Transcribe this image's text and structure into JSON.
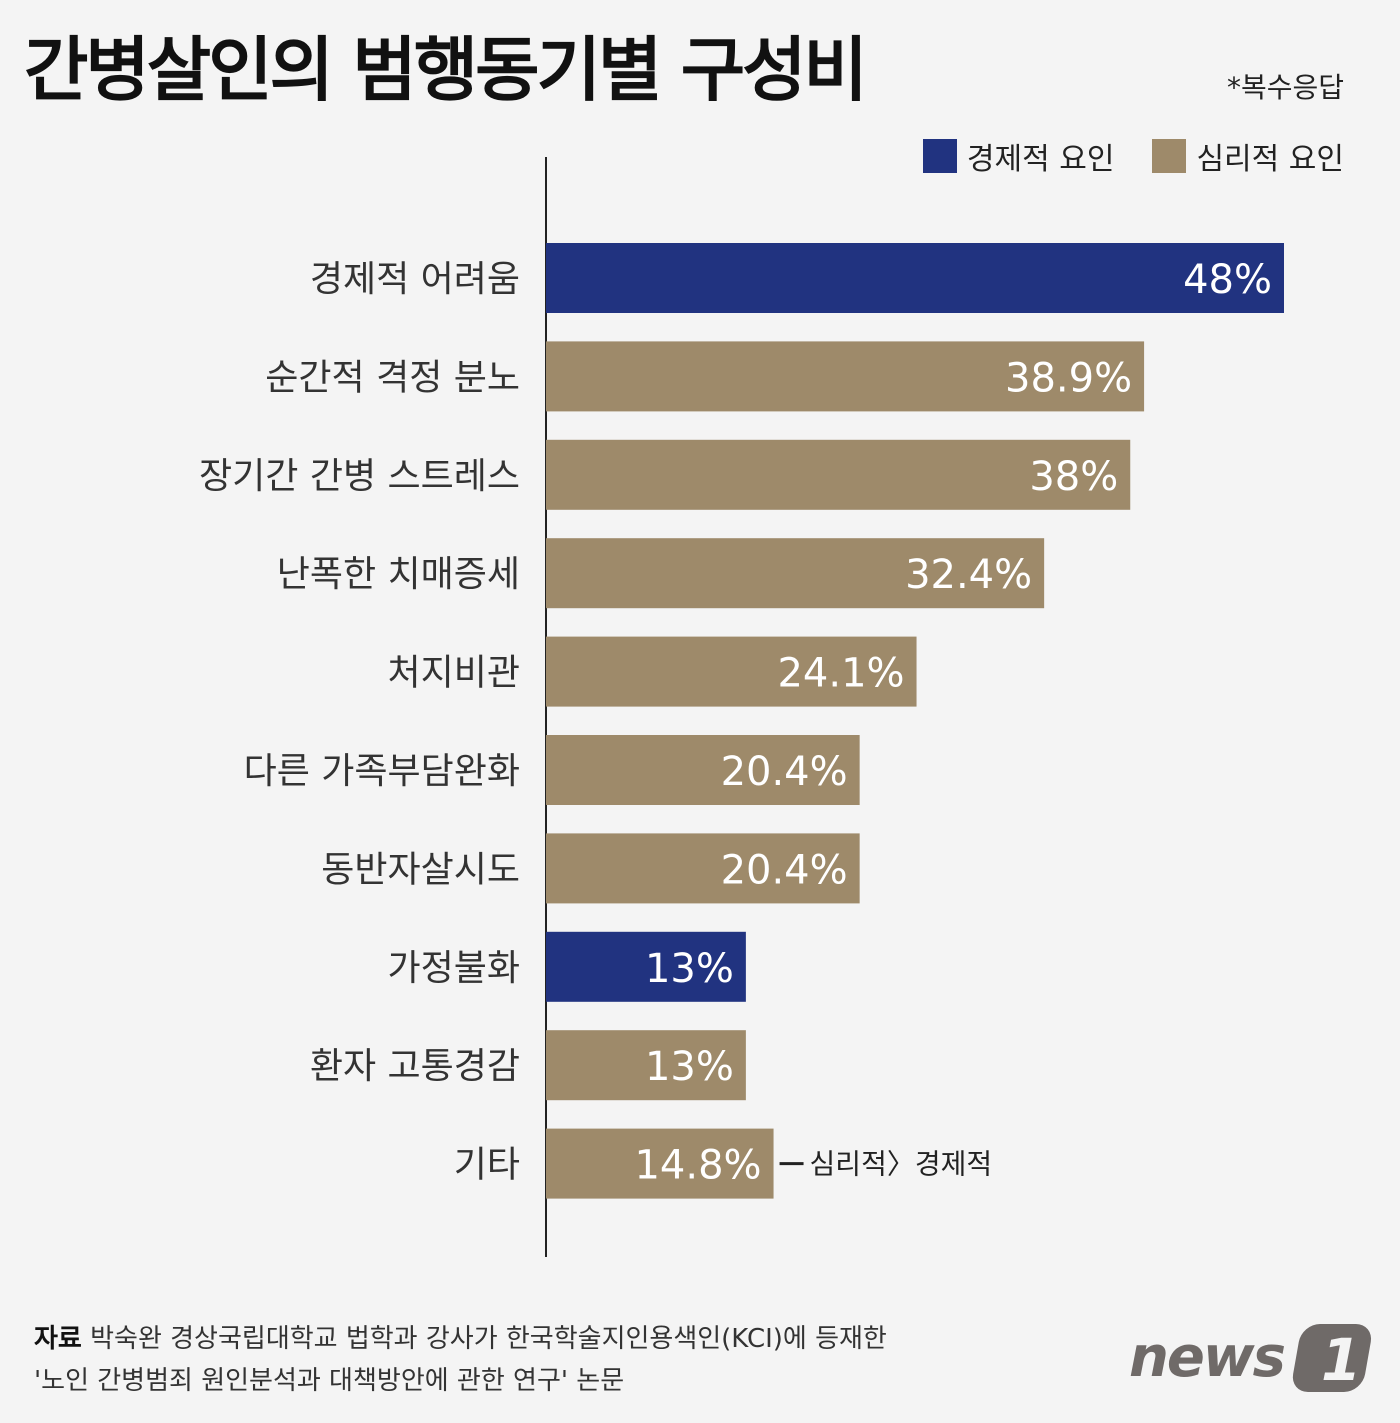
{
  "title": "간병살인의 범행동기별 구성비",
  "note": "*복수응답",
  "legend": [
    {
      "label": "경제적 요인",
      "color": "#213380"
    },
    {
      "label": "심리적 요인",
      "color": "#9e8a6a"
    }
  ],
  "chart_data": {
    "type": "bar",
    "orientation": "horizontal",
    "title": "간병살인의 범행동기별 구성비",
    "unit": "%",
    "categories": [
      "경제적 어려움",
      "순간적 격정 분노",
      "장기간 간병 스트레스",
      "난폭한 치매증세",
      "처지비관",
      "다른 가족부담완화",
      "동반자살시도",
      "가정불화",
      "환자 고통경감",
      "기타"
    ],
    "values": [
      48,
      38.9,
      38,
      32.4,
      24.1,
      20.4,
      20.4,
      13,
      13,
      14.8
    ],
    "value_labels": [
      "48%",
      "38.9%",
      "38%",
      "32.4%",
      "24.1%",
      "20.4%",
      "20.4%",
      "13%",
      "13%",
      "14.8%"
    ],
    "groups": [
      "경제적 요인",
      "심리적 요인",
      "심리적 요인",
      "심리적 요인",
      "심리적 요인",
      "심리적 요인",
      "심리적 요인",
      "경제적 요인",
      "심리적 요인",
      "심리적 요인"
    ],
    "xlim": [
      0,
      48
    ],
    "grid": false,
    "legend_position": "top-right",
    "annotation": "심리적〉경제적"
  },
  "footer": {
    "source_label": "자료",
    "source_text": "박숙완 경상국립대학교 법학과 강사가 한국학술지인용색인(KCI)에 등재한",
    "source_text2": "'노인 간병범죄 원인분석과 대책방안에 관한 연구' 논문"
  },
  "logo": "news1"
}
